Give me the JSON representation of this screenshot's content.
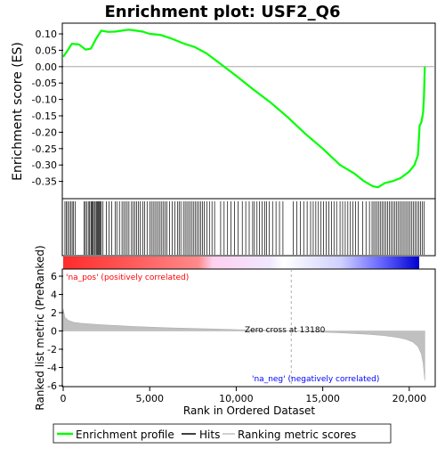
{
  "chart_data": {
    "type": "line",
    "title": "Enrichment plot: USF2_Q6",
    "es_panel": {
      "ylabel": "Enrichment score (ES)",
      "ylim": [
        -0.4,
        0.13
      ],
      "yticks": [
        0.1,
        0.05,
        0.0,
        -0.05,
        -0.1,
        -0.15,
        -0.2,
        -0.25,
        -0.3,
        -0.35
      ],
      "ytick_labels": [
        "0.10",
        "0.05",
        "0.00",
        "-0.05",
        "-0.10",
        "-0.15",
        "-0.20",
        "-0.25",
        "-0.30",
        "-0.35"
      ],
      "series": [
        {
          "name": "Enrichment profile",
          "color": "#00ff00",
          "x": [
            0,
            200,
            500,
            900,
            1300,
            1600,
            1900,
            2200,
            2600,
            3000,
            3400,
            3800,
            4200,
            4600,
            5000,
            5600,
            6300,
            7000,
            7600,
            8300,
            9000,
            10000,
            11000,
            12000,
            13000,
            14000,
            15000,
            16000,
            16800,
            17400,
            17900,
            18200,
            18600,
            19000,
            19500,
            20000,
            20300,
            20500,
            20600,
            20700,
            20800,
            20850,
            20900
          ],
          "y": [
            0.03,
            0.045,
            0.07,
            0.068,
            0.052,
            0.055,
            0.085,
            0.11,
            0.106,
            0.107,
            0.11,
            0.113,
            0.11,
            0.107,
            0.1,
            0.097,
            0.085,
            0.07,
            0.06,
            0.04,
            0.012,
            -0.028,
            -0.07,
            -0.11,
            -0.155,
            -0.205,
            -0.25,
            -0.3,
            -0.325,
            -0.35,
            -0.365,
            -0.368,
            -0.355,
            -0.35,
            -0.34,
            -0.32,
            -0.3,
            -0.27,
            -0.18,
            -0.17,
            -0.14,
            -0.09,
            0.0
          ]
        }
      ]
    },
    "hits": {
      "legend_label": "Hits",
      "positions": [
        100,
        180,
        260,
        350,
        430,
        520,
        600,
        690,
        1200,
        1280,
        1350,
        1450,
        1520,
        1600,
        1650,
        1700,
        1750,
        1820,
        1900,
        1950,
        2000,
        2050,
        2100,
        2150,
        2200,
        2300,
        2500,
        2650,
        2800,
        3000,
        3100,
        3250,
        3400,
        3500,
        3600,
        3700,
        3800,
        3950,
        4050,
        4150,
        4250,
        4350,
        4450,
        4600,
        4700,
        4850,
        5000,
        5100,
        5200,
        5300,
        5400,
        5500,
        5600,
        5700,
        5800,
        5900,
        6000,
        6150,
        6300,
        6450,
        6600,
        6700,
        6800,
        6950,
        7050,
        7150,
        7250,
        7350,
        7450,
        7550,
        7650,
        7750,
        7850,
        7950,
        8050,
        8150,
        8300,
        8450,
        8600,
        8750,
        9100,
        9300,
        9500,
        9700,
        9900,
        10100,
        10350,
        10550,
        10750,
        10950,
        11050,
        11200,
        11350,
        11500,
        11650,
        11750,
        11900,
        12100,
        12300,
        12500,
        12700,
        13300,
        13500,
        13700,
        13900,
        14100,
        14300,
        14450,
        14600,
        14750,
        14900,
        15050,
        15200,
        15350,
        15500,
        15650,
        15800,
        16000,
        16150,
        16300,
        16450,
        16600,
        16750,
        16900,
        17050,
        17300,
        17500,
        17700,
        17850,
        17950,
        18050,
        18150,
        18250,
        18350,
        18450,
        18550,
        18650,
        18750,
        18850,
        18950,
        19050,
        19150,
        19250,
        19350,
        19450,
        19550,
        19650,
        19750,
        19850,
        19950,
        20050,
        20150,
        20250,
        20350,
        20450,
        20550,
        20650,
        20750,
        20850
      ]
    },
    "ranked_panel": {
      "ylabel": "Ranked list metric (PreRanked)",
      "ylim": [
        -6,
        6
      ],
      "yticks": [
        6,
        4,
        2,
        0,
        -2,
        -4,
        -6
      ],
      "ytick_labels": [
        "6",
        "4",
        "2",
        "0",
        "-2",
        "-4",
        "-6"
      ],
      "legend_label": "Ranking metric scores",
      "x": [
        0,
        100,
        300,
        600,
        1000,
        2000,
        4000,
        6000,
        8000,
        10000,
        12000,
        13180,
        14500,
        16000,
        17500,
        18500,
        19300,
        19800,
        20200,
        20500,
        20700,
        20800,
        20900
      ],
      "y": [
        2.4,
        1.5,
        1.15,
        0.95,
        0.85,
        0.7,
        0.5,
        0.35,
        0.25,
        0.15,
        0.07,
        0.0,
        -0.1,
        -0.2,
        -0.35,
        -0.5,
        -0.7,
        -0.9,
        -1.2,
        -1.7,
        -2.5,
        -3.5,
        -5.4
      ],
      "pos_label": "'na_pos' (positively correlated)",
      "neg_label": "'na_neg' (negatively correlated)",
      "zero_cross_label": "Zero cross at 13180",
      "zero_cross": 13180
    },
    "xlabel": "Rank in Ordered Dataset",
    "xlim": [
      0,
      21500
    ],
    "xticks": [
      0,
      5000,
      10000,
      15000,
      20000
    ],
    "xtick_labels": [
      "0",
      "5,000",
      "10,000",
      "15,000",
      "20,000"
    ],
    "legend": [
      "Enrichment profile",
      "Hits",
      "Ranking metric scores"
    ],
    "colors": {
      "profile": "#00ff00",
      "hits": "#000000",
      "metric_fill": "#c0c0c0",
      "pos_text": "#ff0000",
      "neg_text": "#0000ff",
      "gradient_pos": "#ff0000",
      "gradient_neg": "#0000ff"
    }
  }
}
